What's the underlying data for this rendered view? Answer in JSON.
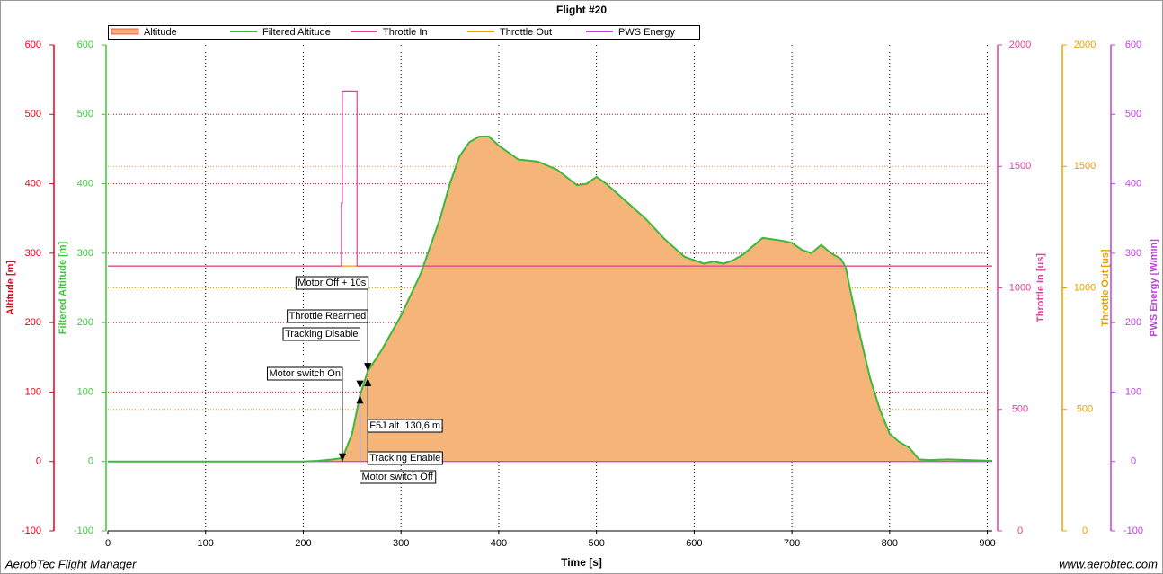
{
  "chart_data": {
    "type": "line",
    "title": "Flight #20",
    "xlabel": "Time [s]",
    "xlim": [
      0,
      905
    ],
    "xticks": [
      0,
      100,
      200,
      300,
      400,
      500,
      600,
      700,
      800,
      900
    ],
    "grid": true,
    "y_axes": [
      {
        "label": "Altitude [m]",
        "color": "#e8001c",
        "side": "left",
        "lim": [
          -100,
          600
        ],
        "ticks": [
          -100,
          0,
          100,
          200,
          300,
          400,
          500,
          600
        ]
      },
      {
        "label": "Filtered Altitude [m]",
        "color": "#3cc83c",
        "side": "left",
        "lim": [
          -100,
          600
        ],
        "ticks": [
          -100,
          0,
          100,
          200,
          300,
          400,
          500,
          600
        ]
      },
      {
        "label": "Throttle In [us]",
        "color": "#e040a0",
        "side": "right",
        "lim": [
          0,
          2000
        ],
        "ticks": [
          0,
          500,
          1000,
          1500,
          2000
        ]
      },
      {
        "label": "Throttle Out [us]",
        "color": "#e8a000",
        "side": "right",
        "lim": [
          0,
          2000
        ],
        "ticks": [
          0,
          500,
          1000,
          1500,
          2000
        ]
      },
      {
        "label": "PWS Energy [W/min]",
        "color": "#c040e0",
        "side": "right",
        "lim": [
          -100,
          600
        ],
        "ticks": [
          -100,
          0,
          100,
          200,
          300,
          400,
          500,
          600
        ]
      }
    ],
    "series": [
      {
        "name": "Filtered Altitude",
        "color": "#3cb83c",
        "style": "line",
        "axis": 1,
        "x": [
          0,
          50,
          100,
          200,
          215,
          230,
          240,
          250,
          258,
          266,
          280,
          300,
          320,
          340,
          350,
          360,
          370,
          380,
          390,
          400,
          420,
          440,
          460,
          480,
          490,
          500,
          510,
          530,
          550,
          570,
          590,
          610,
          620,
          630,
          640,
          650,
          670,
          690,
          700,
          710,
          720,
          730,
          740,
          750,
          755,
          760,
          770,
          780,
          790,
          800,
          810,
          820,
          830,
          840,
          860,
          880,
          905
        ],
        "values": [
          0,
          0,
          0,
          0,
          1,
          3,
          5,
          40,
          95,
          130,
          160,
          210,
          270,
          350,
          400,
          440,
          460,
          468,
          468,
          455,
          435,
          432,
          420,
          398,
          400,
          410,
          400,
          375,
          350,
          320,
          295,
          285,
          288,
          285,
          290,
          298,
          322,
          318,
          315,
          305,
          300,
          312,
          300,
          292,
          280,
          245,
          180,
          120,
          75,
          40,
          28,
          20,
          3,
          2,
          3,
          2,
          1
        ]
      },
      {
        "name": "Altitude",
        "color": "#f5b478",
        "style": "area",
        "axis": 0,
        "x": [
          0,
          50,
          100,
          200,
          215,
          230,
          240,
          250,
          258,
          266,
          280,
          300,
          320,
          340,
          350,
          360,
          370,
          380,
          390,
          400,
          420,
          440,
          460,
          480,
          490,
          500,
          510,
          530,
          550,
          570,
          590,
          610,
          620,
          630,
          640,
          650,
          670,
          690,
          700,
          710,
          720,
          730,
          740,
          750,
          755,
          760,
          770,
          780,
          790,
          800,
          810,
          820,
          830,
          840,
          860,
          880,
          905
        ],
        "values": [
          0,
          0,
          0,
          0,
          1,
          3,
          5,
          40,
          95,
          130,
          160,
          210,
          270,
          350,
          400,
          440,
          460,
          468,
          468,
          455,
          435,
          432,
          420,
          398,
          400,
          410,
          400,
          375,
          350,
          320,
          295,
          285,
          288,
          285,
          290,
          298,
          322,
          318,
          315,
          305,
          300,
          312,
          300,
          292,
          280,
          245,
          180,
          120,
          75,
          40,
          28,
          20,
          3,
          2,
          3,
          2,
          1
        ]
      },
      {
        "name": "Throttle In",
        "color": "#e040a0",
        "style": "line",
        "axis": 2,
        "x": [
          0,
          239,
          239,
          240,
          240,
          255,
          255,
          905
        ],
        "values": [
          1090,
          1090,
          1350,
          1350,
          1810,
          1810,
          1090,
          1090
        ]
      },
      {
        "name": "Throttle Out",
        "color": "#e8a000",
        "style": "line",
        "axis": 3,
        "x": [
          0,
          905
        ],
        "values": [
          1090,
          1090
        ]
      },
      {
        "name": "PWS Energy",
        "color": "#c040e0",
        "style": "line",
        "axis": 4,
        "x": [
          0,
          905
        ],
        "values": [
          0,
          0
        ]
      }
    ],
    "annotations": [
      {
        "text": "Motor switch On",
        "x": 240,
        "y": 0
      },
      {
        "text": "Tracking Disable",
        "x": 258,
        "y": 105
      },
      {
        "text": "Throttle Rearmed",
        "x": 266,
        "y": 130
      },
      {
        "text": "Motor Off + 10s",
        "x": 266,
        "y": 130
      },
      {
        "text": "Motor switch Off",
        "x": 258,
        "y": 95
      },
      {
        "text": "Tracking Enable",
        "x": 266,
        "y": 120
      },
      {
        "text": "F5J alt. 130,6 m",
        "x": 266,
        "y": 130
      }
    ],
    "footer_left": "AerobTec Flight Manager",
    "footer_right": "www.aerobtec.com"
  }
}
